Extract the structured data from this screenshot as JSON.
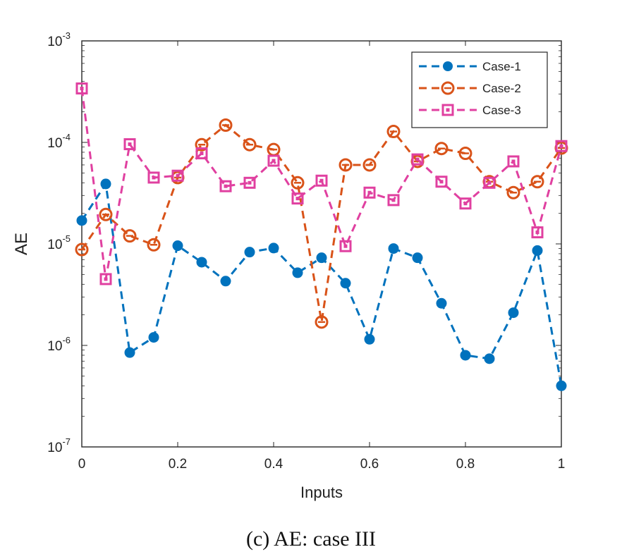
{
  "caption": "(c) AE: case III",
  "chart_data": {
    "type": "line",
    "xlabel": "Inputs",
    "ylabel": "AE",
    "xlim": [
      0,
      1
    ],
    "ylim": [
      1e-07,
      0.001
    ],
    "yscale": "log",
    "grid": false,
    "legend_position": "top-right",
    "x_ticks": [
      "0",
      "0.2",
      "0.4",
      "0.6",
      "0.8",
      "1"
    ],
    "y_ticks": [
      {
        "base": "10",
        "exp": "-7"
      },
      {
        "base": "10",
        "exp": "-6"
      },
      {
        "base": "10",
        "exp": "-5"
      },
      {
        "base": "10",
        "exp": "-4"
      },
      {
        "base": "10",
        "exp": "-3"
      }
    ],
    "x": [
      0,
      0.05,
      0.1,
      0.15,
      0.2,
      0.25,
      0.3,
      0.35,
      0.4,
      0.45,
      0.5,
      0.55,
      0.6,
      0.65,
      0.7,
      0.75,
      0.8,
      0.85,
      0.9,
      0.95,
      1.0
    ],
    "series": [
      {
        "name": "Case-1",
        "color": "#0072BD",
        "marker": "filled-circle",
        "line_style": "dashed",
        "values": [
          1.7e-05,
          3.9e-05,
          8.5e-07,
          1.2e-06,
          9.6e-06,
          6.6e-06,
          4.3e-06,
          8.3e-06,
          9.1e-06,
          5.2e-06,
          7.3e-06,
          4.1e-06,
          1.15e-06,
          9e-06,
          7.3e-06,
          2.6e-06,
          8e-07,
          7.4e-07,
          2.1e-06,
          8.6e-06,
          4e-07
        ]
      },
      {
        "name": "Case-2",
        "color": "#D95319",
        "marker": "open-circle",
        "line_style": "dashed",
        "values": [
          8.8e-06,
          1.95e-05,
          1.2e-05,
          9.8e-06,
          4.5e-05,
          9.5e-05,
          0.000148,
          9.5e-05,
          8.5e-05,
          4e-05,
          1.7e-06,
          6e-05,
          6e-05,
          0.000128,
          6.5e-05,
          8.7e-05,
          7.8e-05,
          4.1e-05,
          3.2e-05,
          4.1e-05,
          8.8e-05
        ]
      },
      {
        "name": "Case-3",
        "color": "#E040A0",
        "marker": "open-square",
        "line_style": "dashed",
        "values": [
          0.00034,
          4.5e-06,
          9.6e-05,
          4.5e-05,
          4.7e-05,
          7.8e-05,
          3.7e-05,
          4e-05,
          6.6e-05,
          2.8e-05,
          4.2e-05,
          9.5e-06,
          3.2e-05,
          2.7e-05,
          6.8e-05,
          4.1e-05,
          2.5e-05,
          4e-05,
          6.5e-05,
          1.3e-05,
          9.2e-05
        ]
      }
    ]
  }
}
